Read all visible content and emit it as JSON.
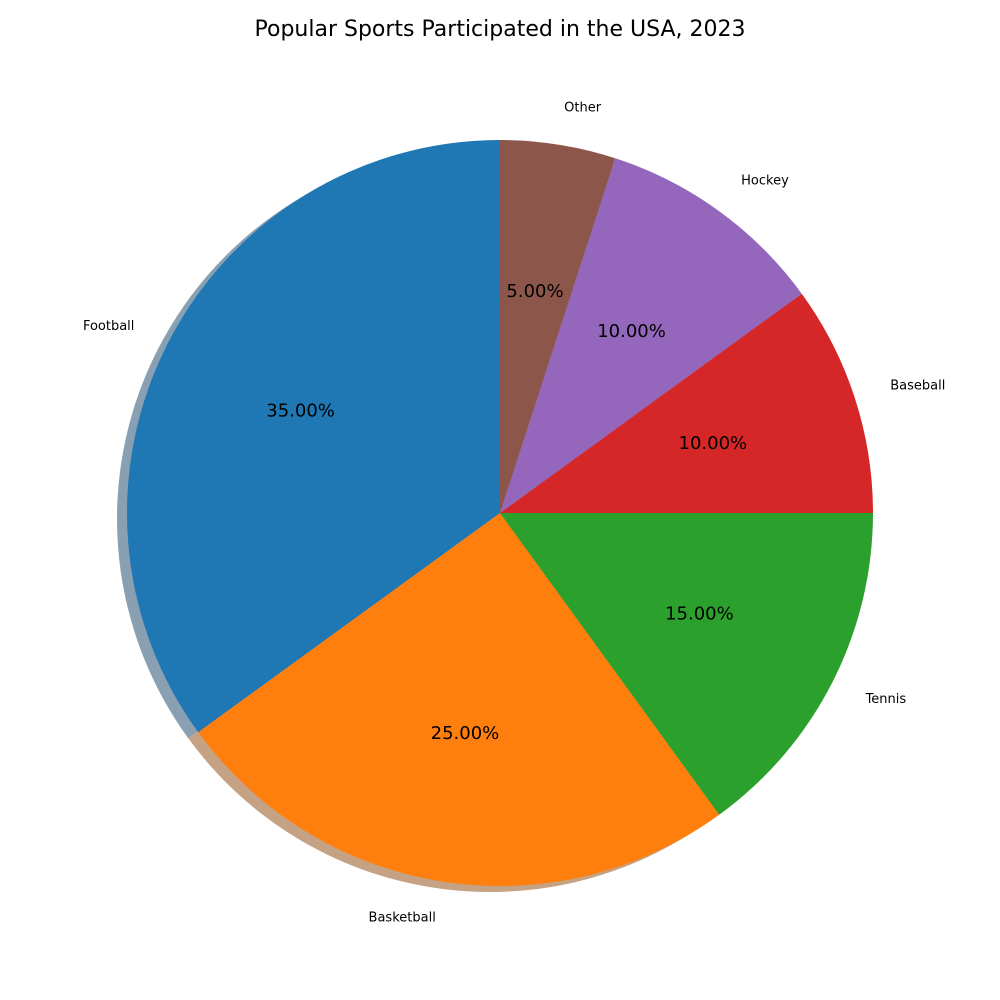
{
  "chart_data": {
    "type": "pie",
    "title": "Popular Sports Participated in the USA, 2023",
    "start_angle_deg": 90,
    "direction": "counterclockwise",
    "shadow": true,
    "slices": [
      {
        "label": "Football",
        "value": 35,
        "pct_label": "35.00%",
        "color": "#1f77b4"
      },
      {
        "label": "Basketball",
        "value": 25,
        "pct_label": "25.00%",
        "color": "#ff7f0e"
      },
      {
        "label": "Tennis",
        "value": 15,
        "pct_label": "15.00%",
        "color": "#2ca02c"
      },
      {
        "label": "Baseball",
        "value": 10,
        "pct_label": "10.00%",
        "color": "#d62728"
      },
      {
        "label": "Hockey",
        "value": 10,
        "pct_label": "10.00%",
        "color": "#9467bd"
      },
      {
        "label": "Other",
        "value": 5,
        "pct_label": "5.00%",
        "color": "#8c564b"
      }
    ]
  }
}
